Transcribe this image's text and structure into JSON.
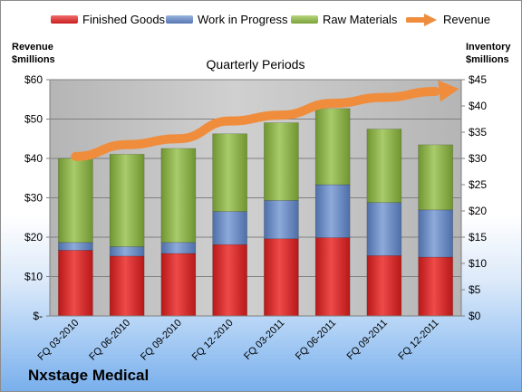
{
  "company": "Nxstage Medical",
  "chart_data": {
    "type": "bar",
    "subtitle": "Quarterly Periods",
    "left_axis_title": [
      "Revenue",
      "$millions"
    ],
    "right_axis_title": [
      "Inventory",
      "$millions"
    ],
    "categories": [
      "FQ 03-2010",
      "FQ 06-2010",
      "FQ 09-2010",
      "FQ 12-2010",
      "FQ 03-2011",
      "FQ 06-2011",
      "FQ 09-2011",
      "FQ 12-2011"
    ],
    "series": [
      {
        "name": "Finished Goods",
        "axis": "right",
        "stacked": true,
        "color": "#e02b2b",
        "values": [
          12.5,
          11.4,
          11.9,
          13.6,
          14.7,
          14.9,
          11.5,
          11.2
        ]
      },
      {
        "name": "Work in Progress",
        "axis": "right",
        "stacked": true,
        "color": "#6e90c8",
        "values": [
          1.5,
          1.8,
          2.1,
          6.3,
          7.3,
          10.1,
          10.1,
          9.0
        ]
      },
      {
        "name": "Raw Materials",
        "axis": "right",
        "stacked": true,
        "color": "#92b64e",
        "values": [
          16.0,
          17.6,
          17.9,
          14.8,
          14.8,
          14.5,
          14.0,
          12.4
        ]
      },
      {
        "name": "Revenue",
        "axis": "left",
        "type": "line",
        "color": "#ef8d3d",
        "values": [
          40.5,
          43.5,
          45.0,
          49.5,
          51.0,
          54.0,
          55.5,
          57.0
        ]
      }
    ],
    "left_axis": {
      "min": 0,
      "max": 60,
      "ticks": [
        "$-",
        "$10",
        "$20",
        "$30",
        "$40",
        "$50",
        "$60"
      ]
    },
    "right_axis": {
      "min": 0,
      "max": 45,
      "ticks": [
        "$0",
        "$5",
        "$10",
        "$15",
        "$20",
        "$25",
        "$30",
        "$35",
        "$40",
        "$45"
      ]
    },
    "plot_background": "#c0c0c0",
    "grid": true,
    "legend": "top"
  }
}
